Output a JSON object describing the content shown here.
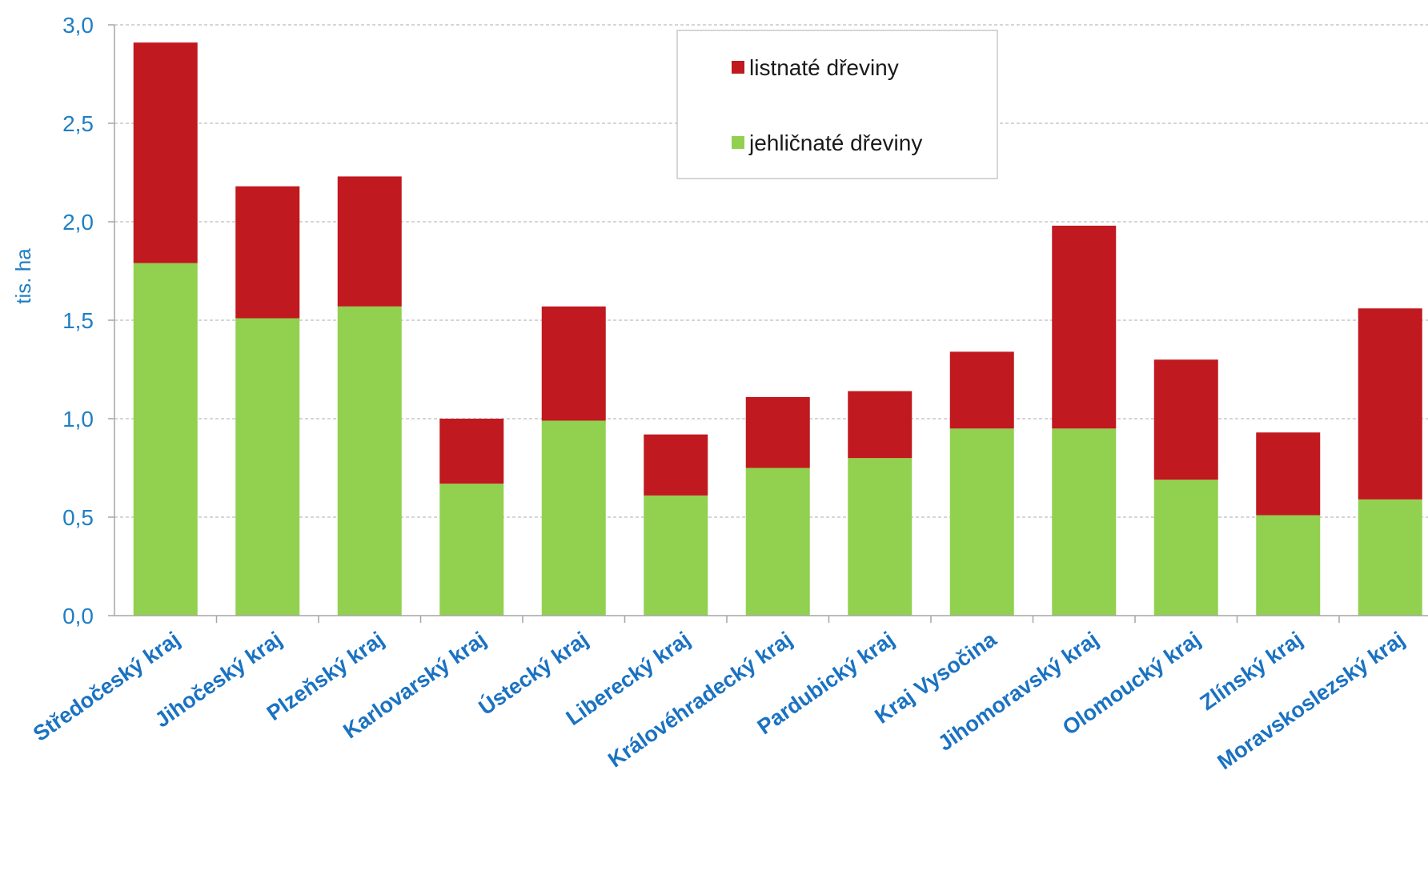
{
  "chart_data": {
    "type": "bar",
    "stacked": true,
    "ylabel": "tis. ha",
    "ylim": [
      0,
      3.0
    ],
    "yticks": [
      "0,0",
      "0,5",
      "1,0",
      "1,5",
      "2,0",
      "2,5",
      "3,0"
    ],
    "grid": true,
    "legend_position": "top-right",
    "categories": [
      "Středočeský kraj",
      "Jihočeský kraj",
      "Plzeňský kraj",
      "Karlovarský kraj",
      "Ústecký kraj",
      "Liberecký kraj",
      "Královéhradecký kraj",
      "Pardubický kraj",
      "Kraj Vysočina",
      "Jihomoravský kraj",
      "Olomoucký kraj",
      "Zlínský kraj",
      "Moravskoslezský kraj"
    ],
    "series": [
      {
        "name": "jehličnaté dřeviny",
        "color": "#92d050",
        "values": [
          1.79,
          1.51,
          1.57,
          0.67,
          0.99,
          0.61,
          0.75,
          0.8,
          0.95,
          0.95,
          0.69,
          0.51,
          0.59
        ]
      },
      {
        "name": "listnaté dřeviny",
        "color": "#c0191f",
        "values": [
          1.12,
          0.67,
          0.66,
          0.33,
          0.58,
          0.31,
          0.36,
          0.34,
          0.39,
          1.03,
          0.61,
          0.42,
          0.97
        ]
      }
    ],
    "legend_order": [
      1,
      0
    ]
  }
}
